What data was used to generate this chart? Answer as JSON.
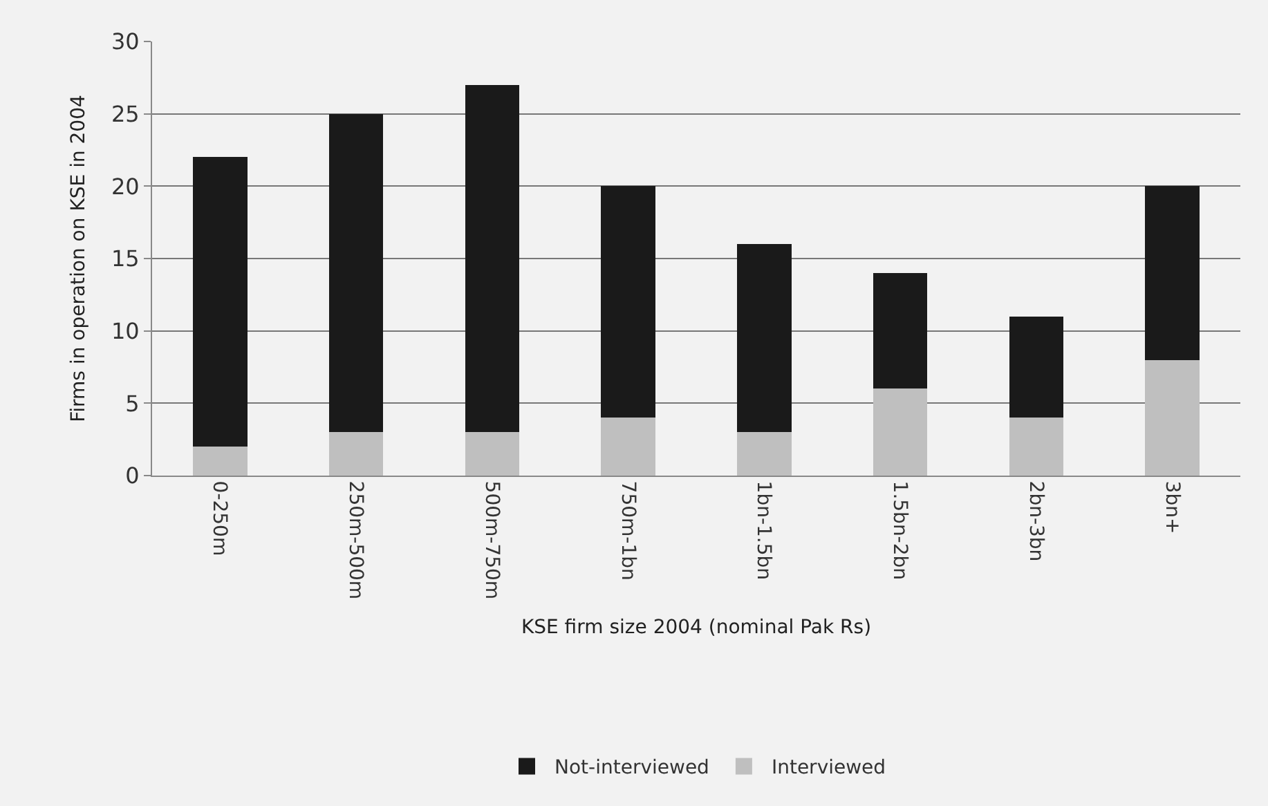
{
  "chart_data": {
    "type": "bar",
    "stacked": true,
    "xlabel": "KSE firm size 2004 (nominal Pak Rs)",
    "ylabel": "Firms in operation on KSE in 2004",
    "categories": [
      "0-250m",
      "250m-500m",
      "500m-750m",
      "750m-1bn",
      "1bn-1.5bn",
      "1.5bn-2bn",
      "2bn-3bn",
      "3bn+"
    ],
    "series": [
      {
        "name": "Interviewed",
        "color": "#bfbfbf",
        "values": [
          2,
          3,
          3,
          4,
          3,
          6,
          4,
          8
        ]
      },
      {
        "name": "Not-interviewed",
        "color": "#1a1a1a",
        "values": [
          20,
          22,
          24,
          16,
          13,
          8,
          7,
          12
        ]
      }
    ],
    "ylim": [
      0,
      30
    ],
    "yticks": [
      0,
      5,
      10,
      15,
      20,
      25,
      30
    ],
    "grid": "y",
    "legend": "bottom"
  }
}
